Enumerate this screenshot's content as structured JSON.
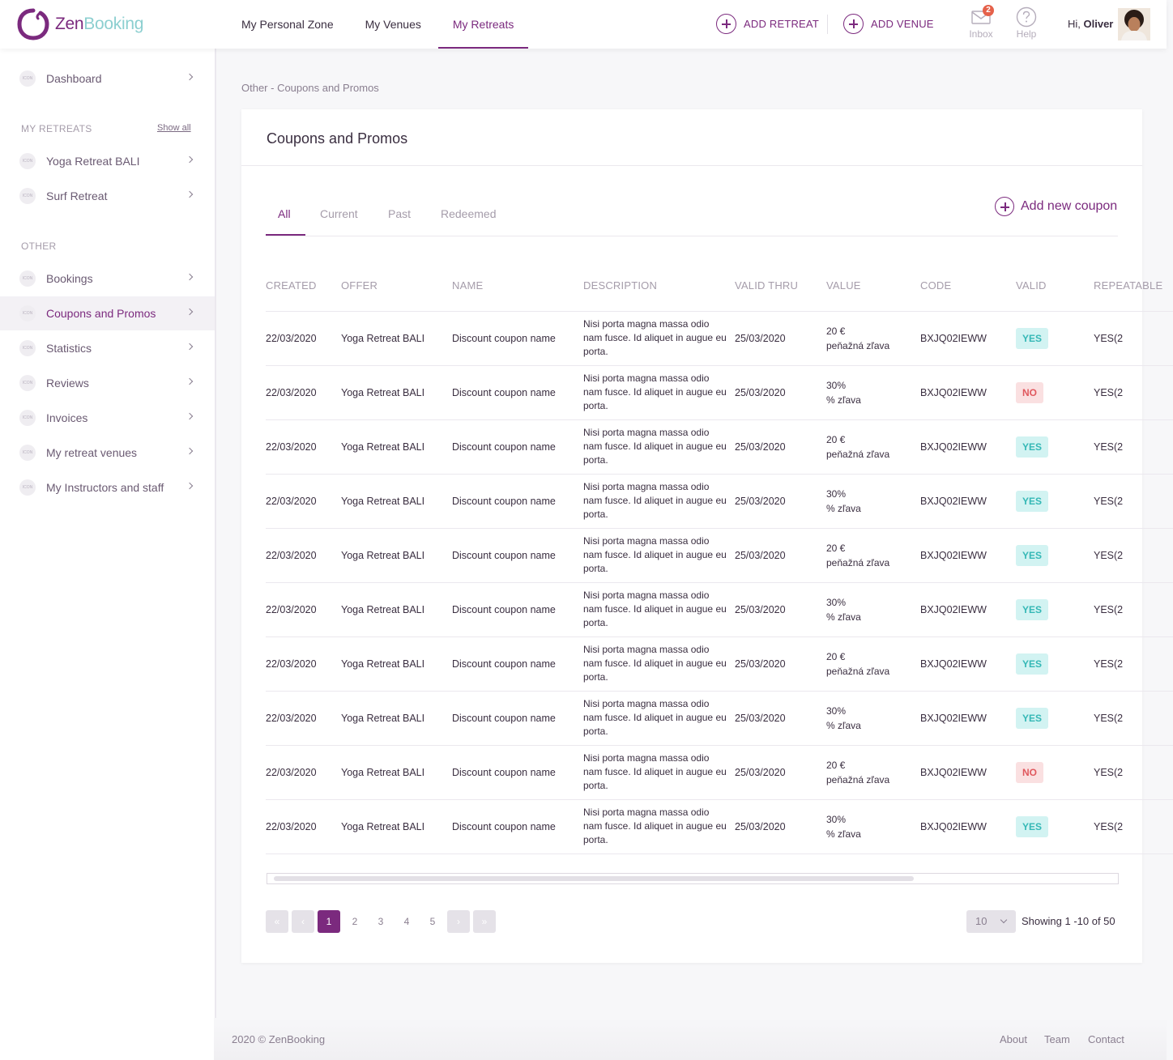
{
  "brand": {
    "name_part1": "Zen",
    "name_part2": "Booking",
    "primary": "#7b2a7e",
    "accent": "#8ccfd0"
  },
  "topnav": [
    {
      "label": "My Personal Zone",
      "active": false
    },
    {
      "label": "My Venues",
      "active": false
    },
    {
      "label": "My Retreats",
      "active": true
    }
  ],
  "header": {
    "add_retreat": "ADD RETREAT",
    "add_venue": "ADD VENUE",
    "inbox_label": "Inbox",
    "inbox_count": "2",
    "help_label": "Help",
    "greeting": "Hi,",
    "user_name": "Oliver"
  },
  "sidebar": {
    "icon_placeholder": "ICON",
    "dashboard": "Dashboard",
    "my_retreats_heading": "MY RETREATS",
    "show_all": "Show all",
    "retreats": [
      "Yoga Retreat BALI",
      "Surf Retreat"
    ],
    "other_heading": "OTHER",
    "other_items": [
      "Bookings",
      "Coupons and Promos",
      "Statistics",
      "Reviews",
      "Invoices",
      "My retreat venues",
      "My Instructors and staff"
    ],
    "active_item": "Coupons and Promos"
  },
  "breadcrumb": "Other - Coupons and Promos",
  "card": {
    "title": "Coupons and Promos",
    "tabs": [
      "All",
      "Current",
      "Past",
      "Redeemed"
    ],
    "active_tab": "All",
    "add_coupon": "Add new coupon"
  },
  "table": {
    "columns": [
      "CREATED",
      "OFFER",
      "NAME",
      "DESCRIPTION",
      "VALID THRU",
      "VALUE",
      "CODE",
      "VALID",
      "REPEATABLE"
    ],
    "rows": [
      {
        "created": "22/03/2020",
        "offer": "Yoga Retreat BALI",
        "name": "Discount coupon name",
        "description": "Nisi porta magna massa odio nam fusce. Id aliquet in augue eu porta.",
        "valid_thru": "25/03/2020",
        "value_amount": "20 €",
        "value_type": "peňažná zľava",
        "code": "BXJQ02IEWW",
        "valid": "YES",
        "repeat": "YES(2"
      },
      {
        "created": "22/03/2020",
        "offer": "Yoga Retreat BALI",
        "name": "Discount coupon name",
        "description": "Nisi porta magna massa odio nam fusce. Id aliquet in augue eu porta.",
        "valid_thru": "25/03/2020",
        "value_amount": "30%",
        "value_type": "% zľava",
        "code": "BXJQ02IEWW",
        "valid": "NO",
        "repeat": "YES(2"
      },
      {
        "created": "22/03/2020",
        "offer": "Yoga Retreat BALI",
        "name": "Discount coupon name",
        "description": "Nisi porta magna massa odio nam fusce. Id aliquet in augue eu porta.",
        "valid_thru": "25/03/2020",
        "value_amount": "20 €",
        "value_type": "peňažná zľava",
        "code": "BXJQ02IEWW",
        "valid": "YES",
        "repeat": "YES(2"
      },
      {
        "created": "22/03/2020",
        "offer": "Yoga Retreat BALI",
        "name": "Discount coupon name",
        "description": "Nisi porta magna massa odio nam fusce. Id aliquet in augue eu porta.",
        "valid_thru": "25/03/2020",
        "value_amount": "30%",
        "value_type": "% zľava",
        "code": "BXJQ02IEWW",
        "valid": "YES",
        "repeat": "YES(2"
      },
      {
        "created": "22/03/2020",
        "offer": "Yoga Retreat BALI",
        "name": "Discount coupon name",
        "description": "Nisi porta magna massa odio nam fusce. Id aliquet in augue eu porta.",
        "valid_thru": "25/03/2020",
        "value_amount": "20 €",
        "value_type": "peňažná zľava",
        "code": "BXJQ02IEWW",
        "valid": "YES",
        "repeat": "YES(2"
      },
      {
        "created": "22/03/2020",
        "offer": "Yoga Retreat BALI",
        "name": "Discount coupon name",
        "description": "Nisi porta magna massa odio nam fusce. Id aliquet in augue eu porta.",
        "valid_thru": "25/03/2020",
        "value_amount": "30%",
        "value_type": "% zľava",
        "code": "BXJQ02IEWW",
        "valid": "YES",
        "repeat": "YES(2"
      },
      {
        "created": "22/03/2020",
        "offer": "Yoga Retreat BALI",
        "name": "Discount coupon name",
        "description": "Nisi porta magna massa odio nam fusce. Id aliquet in augue eu porta.",
        "valid_thru": "25/03/2020",
        "value_amount": "20 €",
        "value_type": "peňažná zľava",
        "code": "BXJQ02IEWW",
        "valid": "YES",
        "repeat": "YES(2"
      },
      {
        "created": "22/03/2020",
        "offer": "Yoga Retreat BALI",
        "name": "Discount coupon name",
        "description": "Nisi porta magna massa odio nam fusce. Id aliquet in augue eu porta.",
        "valid_thru": "25/03/2020",
        "value_amount": "30%",
        "value_type": "% zľava",
        "code": "BXJQ02IEWW",
        "valid": "YES",
        "repeat": "YES(2"
      },
      {
        "created": "22/03/2020",
        "offer": "Yoga Retreat BALI",
        "name": "Discount coupon name",
        "description": "Nisi porta magna massa odio nam fusce. Id aliquet in augue eu porta.",
        "valid_thru": "25/03/2020",
        "value_amount": "20 €",
        "value_type": "peňažná zľava",
        "code": "BXJQ02IEWW",
        "valid": "NO",
        "repeat": "YES(2"
      },
      {
        "created": "22/03/2020",
        "offer": "Yoga Retreat BALI",
        "name": "Discount coupon name",
        "description": "Nisi porta magna massa odio nam fusce. Id aliquet in augue eu porta.",
        "valid_thru": "25/03/2020",
        "value_amount": "30%",
        "value_type": "% zľava",
        "code": "BXJQ02IEWW",
        "valid": "YES",
        "repeat": "YES(2"
      }
    ]
  },
  "pagination": {
    "pages": [
      "1",
      "2",
      "3",
      "4",
      "5"
    ],
    "current": "1",
    "first_icon": "«",
    "prev_icon": "‹",
    "next_icon": "›",
    "last_icon": "»",
    "per_page": "10",
    "showing": "Showing 1 -10 of 50"
  },
  "footer": {
    "copyright": "2020 © ZenBooking",
    "links": [
      "About",
      "Team",
      "Contact"
    ]
  }
}
